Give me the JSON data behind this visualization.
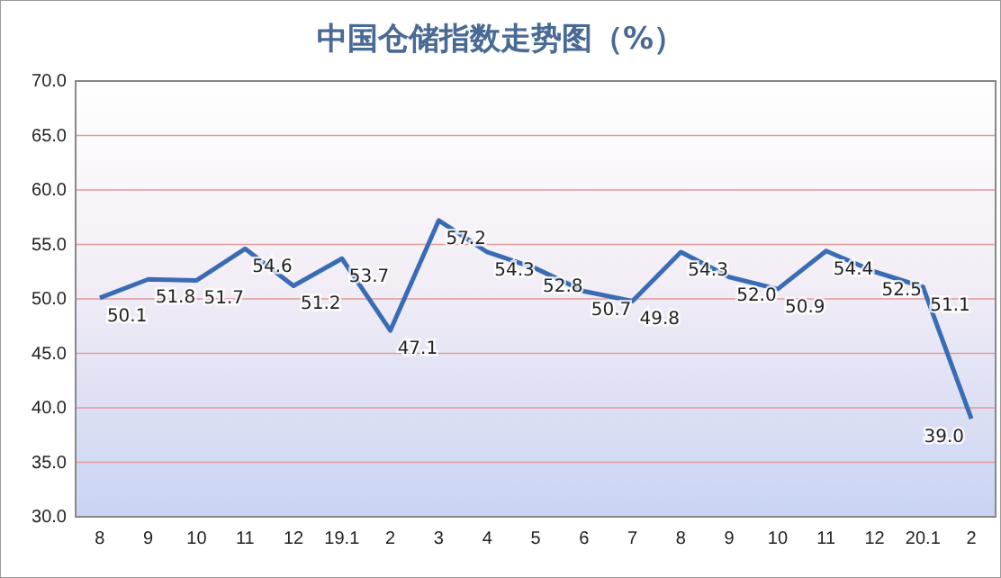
{
  "chart_data": {
    "type": "line",
    "title": "中国仓储指数走势图（%）",
    "categories": [
      "8",
      "9",
      "10",
      "11",
      "12",
      "19.1",
      "2",
      "3",
      "4",
      "5",
      "6",
      "7",
      "8",
      "9",
      "10",
      "11",
      "12",
      "20.1",
      "2"
    ],
    "series": [
      {
        "color": "#3a6cb4",
        "values": [
          50.1,
          51.8,
          51.7,
          54.6,
          51.2,
          53.7,
          47.1,
          57.2,
          54.3,
          52.8,
          50.7,
          49.8,
          54.3,
          52.0,
          50.9,
          54.4,
          52.5,
          51.1,
          39.0
        ]
      }
    ],
    "ylim": [
      30,
      70
    ],
    "yticks": [
      {
        "value": 30,
        "label": "30.0"
      },
      {
        "value": 35,
        "label": "35.0"
      },
      {
        "value": 40,
        "label": "40.0"
      },
      {
        "value": 45,
        "label": "45.0"
      },
      {
        "value": 50,
        "label": "50.0"
      },
      {
        "value": 55,
        "label": "55.0"
      },
      {
        "value": 60,
        "label": "60.0"
      },
      {
        "value": 65,
        "label": "65.0"
      },
      {
        "value": 70,
        "label": "70.0"
      }
    ],
    "value_labels": [
      "50.1",
      "51.8",
      "51.7",
      "54.6",
      "51.2",
      "53.7",
      "47.1",
      "57.2",
      "54.3",
      "52.8",
      "50.7",
      "49.8",
      "54.3",
      "52.0",
      "50.9",
      "54.4",
      "52.5",
      "51.1",
      "39.0"
    ],
    "grid": "y",
    "marker": "none",
    "line_style": "solid"
  }
}
